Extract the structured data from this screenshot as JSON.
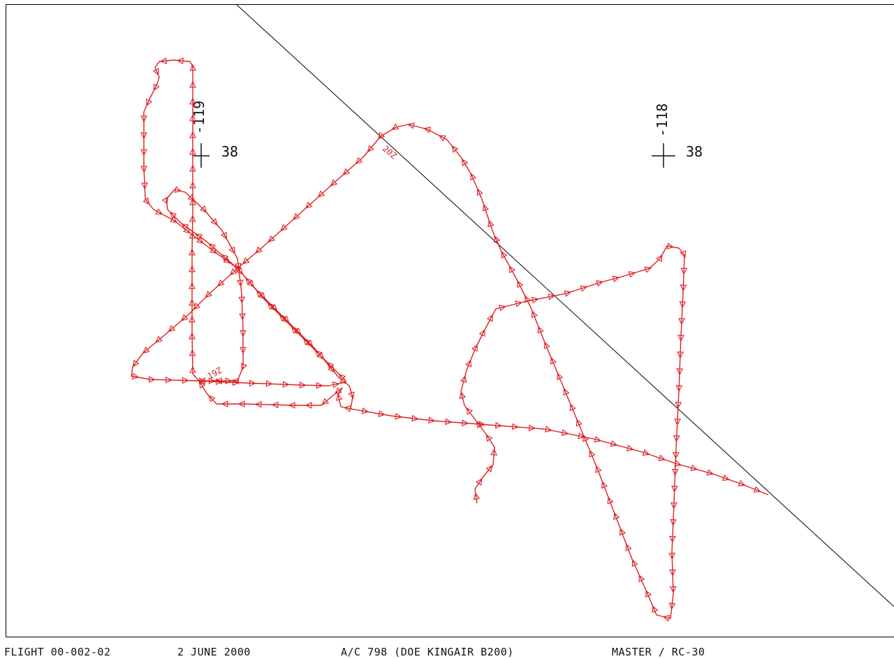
{
  "footer": {
    "flight": "FLIGHT 00-002-02",
    "date": "2 JUNE 2000",
    "aircraft": "A/C 798 (DOE KINGAIR B200)",
    "instrument": "MASTER / RC-30"
  },
  "graticule": [
    {
      "lon_label": "-119",
      "lat_label": "38"
    },
    {
      "lon_label": "-118",
      "lat_label": "38"
    }
  ],
  "time_marks": [
    "19Z",
    "20Z"
  ],
  "colors": {
    "track": "#dd2020",
    "boundary": "#000000",
    "frame": "#000000",
    "text": "#111111"
  }
}
